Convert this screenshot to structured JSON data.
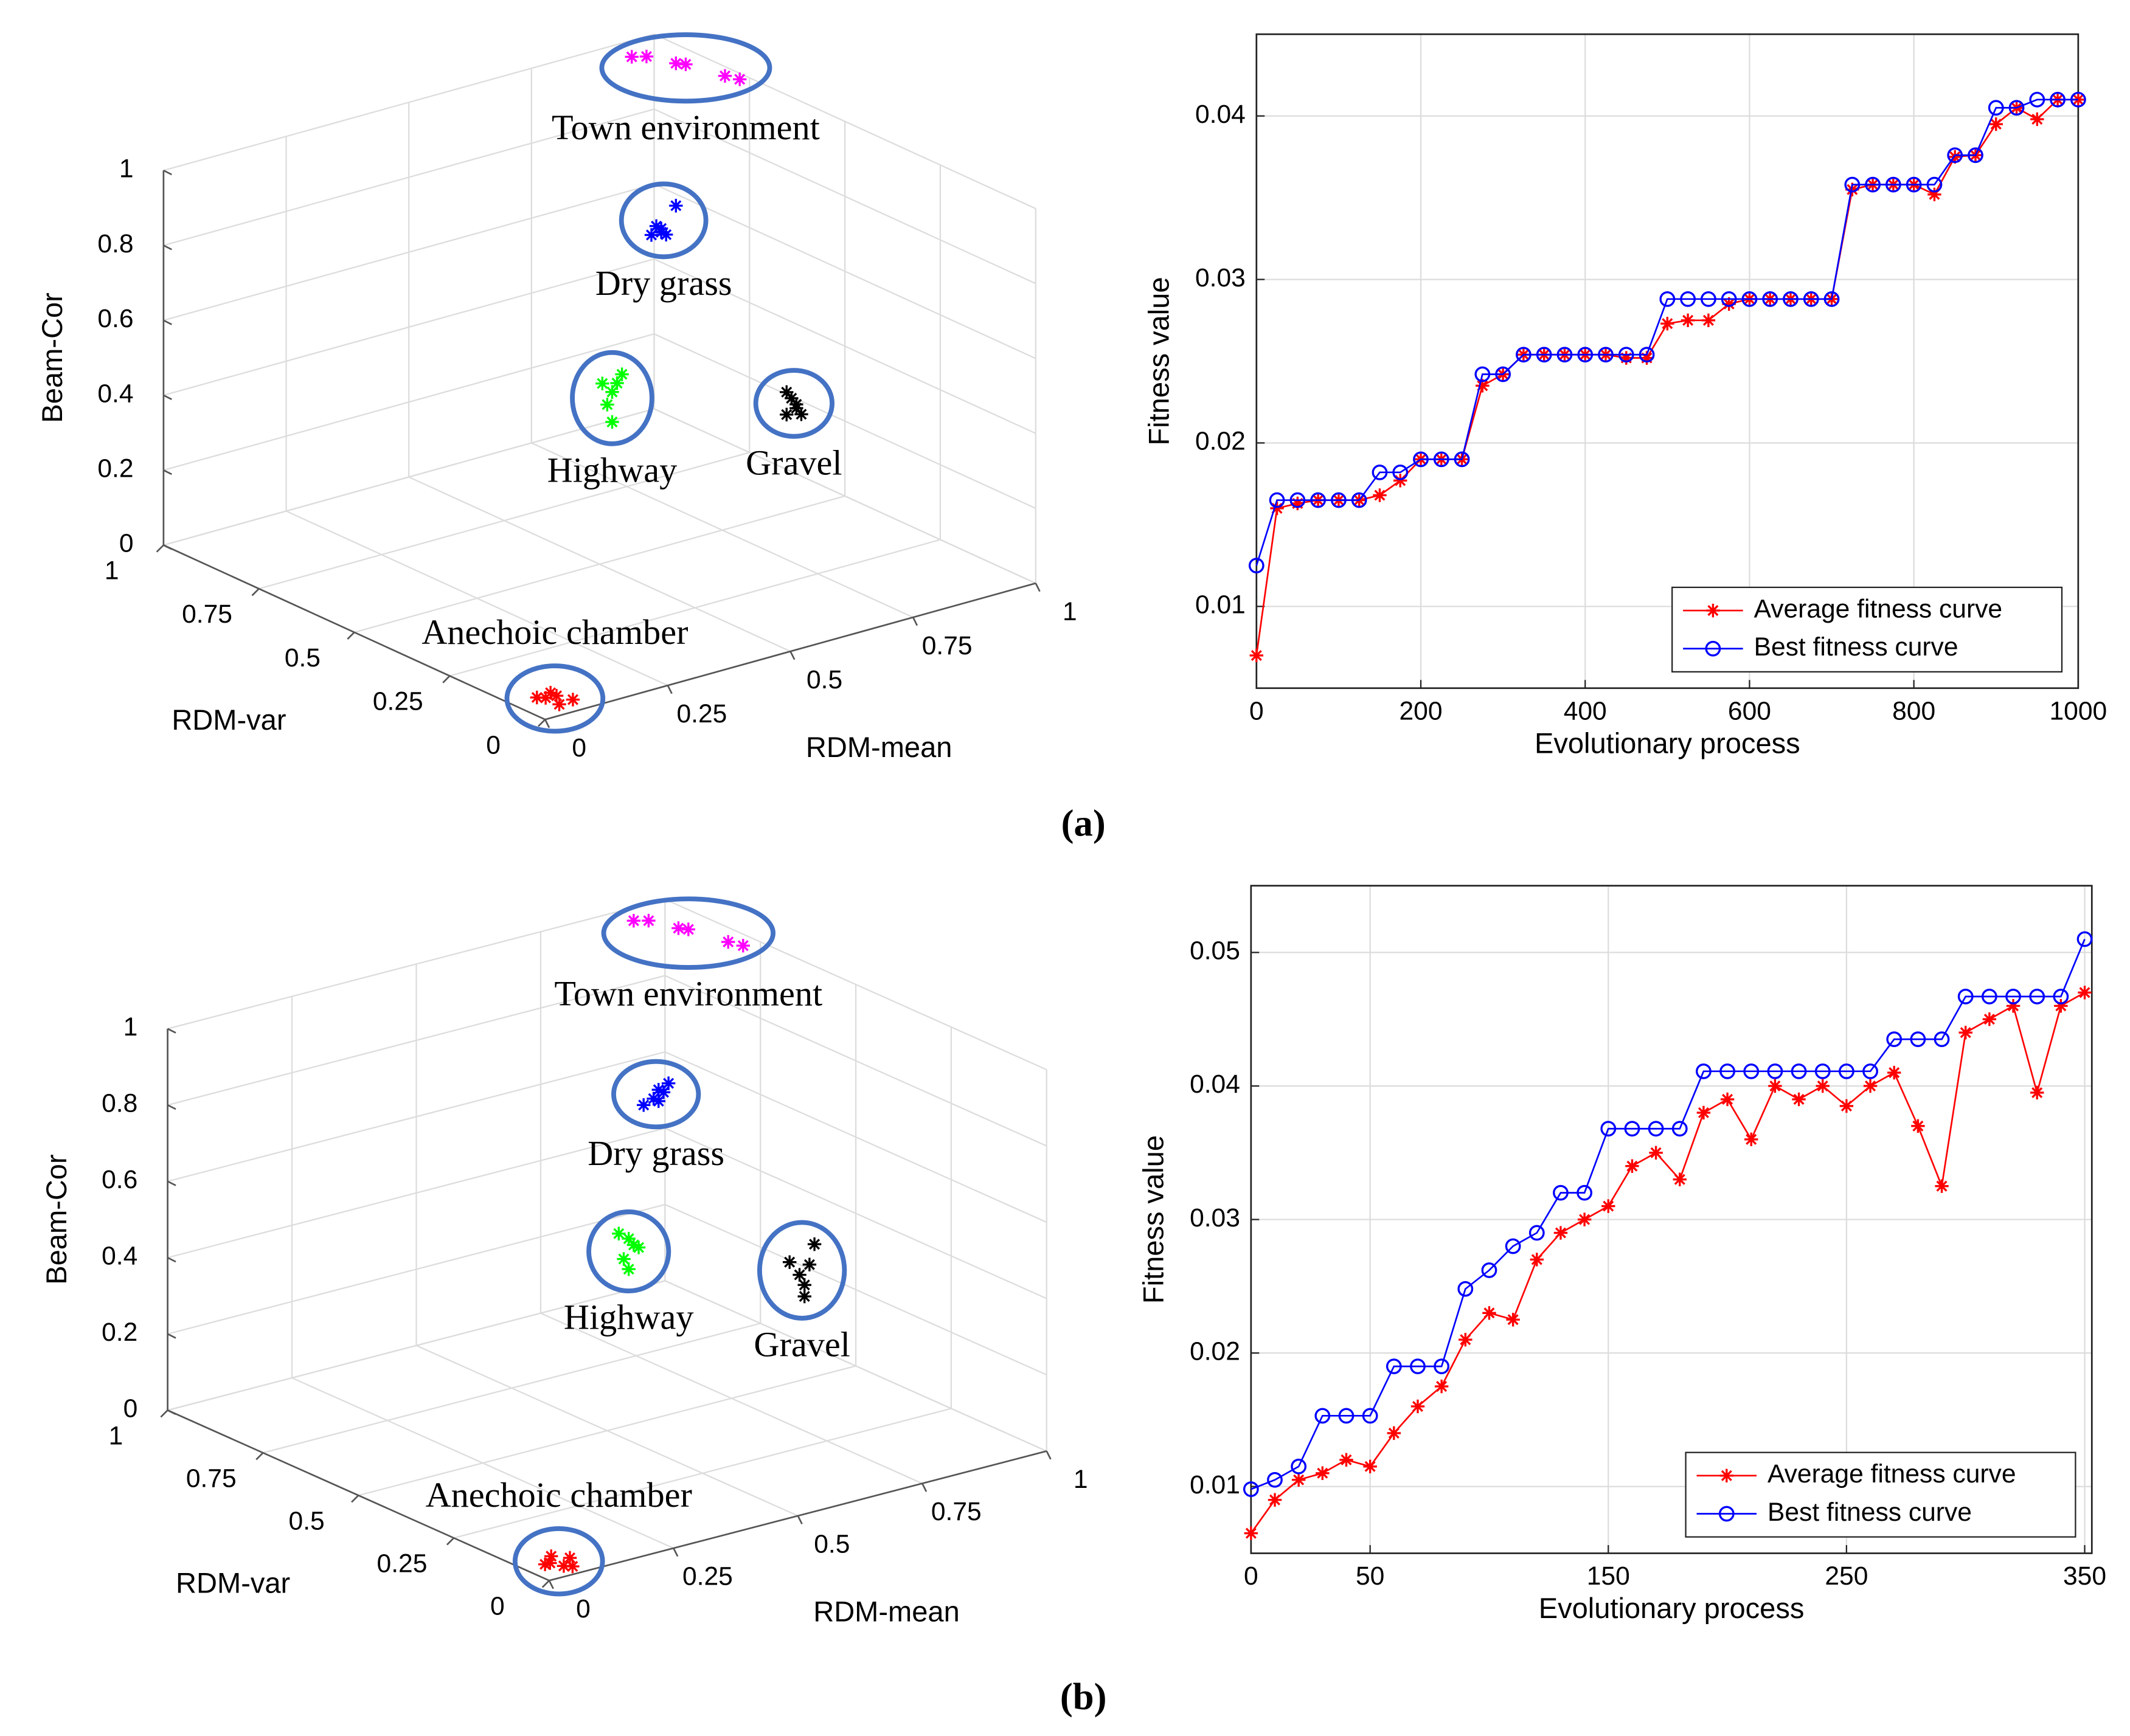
{
  "chart_data": [
    {
      "type": "scatter3d",
      "xlabel": "RDM-mean",
      "ylabel": "RDM-var",
      "zlabel": "Beam-Cor",
      "xlim": [
        0,
        1
      ],
      "ylim": [
        0,
        1
      ],
      "zlim": [
        0,
        1
      ],
      "xticks": [
        0,
        0.25,
        0.5,
        0.75,
        1
      ],
      "yticks": [
        0,
        0.25,
        0.5,
        0.75,
        1
      ],
      "zticks": [
        0,
        0.2,
        0.4,
        0.6,
        0.8,
        1
      ],
      "grid": true,
      "annotation_color": "#4472c4",
      "series": [
        {
          "name": "Town environment",
          "color": "#ff00ff",
          "x": [
            0.41,
            0.44,
            0.5,
            0.52,
            0.6,
            0.63
          ],
          "y": [
            0.3,
            0.3,
            0.3,
            0.3,
            0.3,
            0.3
          ],
          "z": [
            1.48,
            1.47,
            1.43,
            1.42,
            1.36,
            1.34
          ]
        },
        {
          "name": "Dry grass",
          "color": "#0000ff",
          "x": [
            0.45,
            0.47,
            0.48,
            0.46,
            0.5,
            0.47
          ],
          "y": [
            0.3,
            0.3,
            0.3,
            0.3,
            0.3,
            0.3
          ],
          "z": [
            0.99,
            1.0,
            0.98,
            1.01,
            1.05,
            0.99
          ]
        },
        {
          "name": "Highway",
          "color": "#00ff00",
          "x": [
            0.35,
            0.37,
            0.38,
            0.36,
            0.39,
            0.37
          ],
          "y": [
            0.3,
            0.3,
            0.3,
            0.3,
            0.3,
            0.3
          ],
          "z": [
            0.63,
            0.6,
            0.62,
            0.57,
            0.64,
            0.52
          ]
        },
        {
          "name": "Gravel",
          "color": "#000000",
          "x": [
            0.57,
            0.58,
            0.59,
            0.6,
            0.57,
            0.59
          ],
          "y": [
            0.1,
            0.1,
            0.1,
            0.1,
            0.1,
            0.1
          ],
          "z": [
            0.56,
            0.6,
            0.58,
            0.55,
            0.62,
            0.57
          ]
        },
        {
          "name": "Anechoic chamber",
          "color": "#ff0000",
          "x": [
            0.04,
            0.06,
            0.07,
            0.05,
            0.08,
            0.03
          ],
          "y": [
            0.05,
            0.04,
            0.06,
            0.05,
            0.03,
            0.06
          ],
          "z": [
            0.02,
            0.0,
            0.01,
            0.03,
            0.01,
            0.02
          ]
        }
      ]
    },
    {
      "type": "line",
      "xlabel": "Evolutionary process",
      "ylabel": "Fitness value",
      "x": [
        0,
        25,
        50,
        75,
        100,
        125,
        150,
        175,
        200,
        225,
        250,
        275,
        300,
        325,
        350,
        375,
        400,
        425,
        450,
        475,
        500,
        525,
        550,
        575,
        600,
        625,
        650,
        675,
        700,
        725,
        750,
        775,
        800,
        825,
        850,
        875,
        900,
        925,
        950,
        975,
        1000
      ],
      "xlim": [
        0,
        1000
      ],
      "ylim": [
        0.005,
        0.045
      ],
      "xticks": [
        0,
        200,
        400,
        600,
        800,
        1000
      ],
      "yticks": [
        0.01,
        0.02,
        0.03,
        0.04
      ],
      "grid": true,
      "legend": "lower right",
      "series": [
        {
          "name": "Average fitness curve",
          "color": "#ff0000",
          "marker": "star",
          "values": [
            0.007,
            0.016,
            0.0163,
            0.0165,
            0.0165,
            0.0165,
            0.0168,
            0.0177,
            0.019,
            0.019,
            0.019,
            0.0235,
            0.0242,
            0.0254,
            0.0254,
            0.0254,
            0.0254,
            0.0254,
            0.0252,
            0.0252,
            0.0273,
            0.0275,
            0.0275,
            0.0285,
            0.0288,
            0.0288,
            0.0288,
            0.0288,
            0.0288,
            0.0355,
            0.0358,
            0.0358,
            0.0358,
            0.0352,
            0.0375,
            0.0376,
            0.0395,
            0.0405,
            0.0398,
            0.041,
            0.041
          ]
        },
        {
          "name": "Best fitness curve",
          "color": "#0000ff",
          "marker": "circle",
          "values": [
            0.0125,
            0.0165,
            0.0165,
            0.0165,
            0.0165,
            0.0165,
            0.0182,
            0.0182,
            0.019,
            0.019,
            0.019,
            0.0242,
            0.0242,
            0.0254,
            0.0254,
            0.0254,
            0.0254,
            0.0254,
            0.0254,
            0.0254,
            0.0288,
            0.0288,
            0.0288,
            0.0288,
            0.0288,
            0.0288,
            0.0288,
            0.0288,
            0.0288,
            0.0358,
            0.0358,
            0.0358,
            0.0358,
            0.0358,
            0.0376,
            0.0376,
            0.0405,
            0.0405,
            0.041,
            0.041,
            0.041
          ]
        }
      ]
    },
    {
      "type": "scatter3d",
      "xlabel": "RDM-mean",
      "ylabel": "RDM-var",
      "zlabel": "Beam-Cor",
      "xlim": [
        0,
        1
      ],
      "ylim": [
        0,
        1
      ],
      "zlim": [
        0,
        1
      ],
      "xticks": [
        0,
        0.25,
        0.5,
        0.75,
        1
      ],
      "yticks": [
        0,
        0.25,
        0.5,
        0.75,
        1
      ],
      "zticks": [
        0,
        0.2,
        0.4,
        0.6,
        0.8,
        1
      ],
      "grid": true,
      "annotation_color": "#4472c4",
      "series": [
        {
          "name": "Town environment",
          "color": "#ff00ff",
          "x": [
            0.4,
            0.43,
            0.49,
            0.51,
            0.59,
            0.62
          ],
          "y": [
            0.3,
            0.3,
            0.3,
            0.3,
            0.3,
            0.3
          ],
          "z": [
            1.46,
            1.45,
            1.41,
            1.4,
            1.34,
            1.32
          ]
        },
        {
          "name": "Dry grass",
          "color": "#0000ff",
          "x": [
            0.42,
            0.44,
            0.45,
            0.46,
            0.47,
            0.45
          ],
          "y": [
            0.3,
            0.3,
            0.3,
            0.3,
            0.3,
            0.3
          ],
          "z": [
            0.97,
            0.98,
            1.0,
            0.99,
            1.01,
            0.97
          ]
        },
        {
          "name": "Highway",
          "color": "#00ff00",
          "x": [
            0.37,
            0.39,
            0.4,
            0.38,
            0.41,
            0.39
          ],
          "y": [
            0.3,
            0.3,
            0.3,
            0.3,
            0.3,
            0.3
          ],
          "z": [
            0.65,
            0.63,
            0.61,
            0.58,
            0.6,
            0.55
          ]
        },
        {
          "name": "Gravel",
          "color": "#000000",
          "x": [
            0.56,
            0.58,
            0.59,
            0.6,
            0.61,
            0.59
          ],
          "y": [
            0.1,
            0.1,
            0.1,
            0.1,
            0.1,
            0.1
          ],
          "z": [
            0.6,
            0.56,
            0.53,
            0.58,
            0.63,
            0.5
          ]
        },
        {
          "name": "Anechoic chamber",
          "color": "#ff0000",
          "x": [
            0.04,
            0.06,
            0.08,
            0.05,
            0.07,
            0.03
          ],
          "y": [
            0.05,
            0.04,
            0.05,
            0.06,
            0.03,
            0.05
          ],
          "z": [
            0.01,
            0.0,
            0.01,
            0.02,
            0.0,
            0.01
          ]
        }
      ]
    },
    {
      "type": "line",
      "xlabel": "Evolutionary process",
      "ylabel": "Fitness value",
      "x": [
        0,
        10,
        20,
        30,
        40,
        50,
        60,
        70,
        80,
        90,
        100,
        110,
        120,
        130,
        140,
        150,
        160,
        170,
        180,
        190,
        200,
        210,
        220,
        230,
        240,
        250,
        260,
        270,
        280,
        290,
        300,
        310,
        320,
        330,
        340,
        350
      ],
      "xlim": [
        0,
        353
      ],
      "ylim": [
        0.005,
        0.055
      ],
      "xticks": [
        0,
        50,
        150,
        250,
        350
      ],
      "yticks": [
        0.01,
        0.02,
        0.03,
        0.04,
        0.05
      ],
      "grid": true,
      "legend": "lower right",
      "series": [
        {
          "name": "Average fitness curve",
          "color": "#ff0000",
          "marker": "star",
          "values": [
            0.0065,
            0.009,
            0.0105,
            0.011,
            0.012,
            0.0115,
            0.014,
            0.016,
            0.0175,
            0.021,
            0.023,
            0.0225,
            0.027,
            0.029,
            0.03,
            0.031,
            0.034,
            0.035,
            0.033,
            0.038,
            0.039,
            0.036,
            0.04,
            0.039,
            0.04,
            0.0385,
            0.04,
            0.041,
            0.037,
            0.0325,
            0.044,
            0.045,
            0.046,
            0.0395,
            0.046,
            0.047
          ]
        },
        {
          "name": "Best fitness curve",
          "color": "#0000ff",
          "marker": "circle",
          "values": [
            0.0098,
            0.0105,
            0.0115,
            0.0153,
            0.0153,
            0.0153,
            0.019,
            0.019,
            0.019,
            0.0248,
            0.0262,
            0.028,
            0.029,
            0.032,
            0.032,
            0.0368,
            0.0368,
            0.0368,
            0.0368,
            0.0411,
            0.0411,
            0.0411,
            0.0411,
            0.0411,
            0.0411,
            0.0411,
            0.0411,
            0.0435,
            0.0435,
            0.0435,
            0.0467,
            0.0467,
            0.0467,
            0.0467,
            0.0467,
            0.051
          ]
        }
      ]
    }
  ],
  "captions": [
    "(a)",
    "(b)"
  ]
}
